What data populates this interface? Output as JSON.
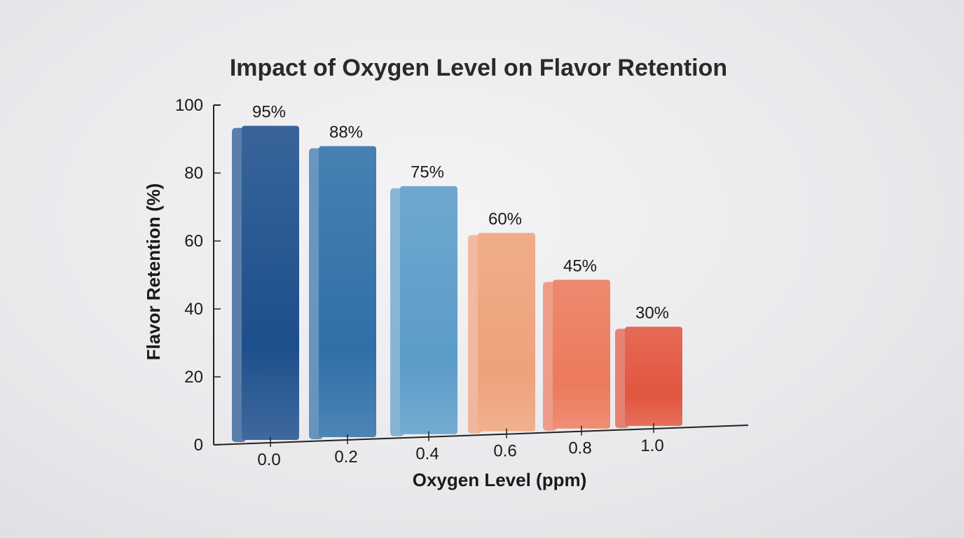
{
  "chart_data": {
    "type": "bar",
    "title": "Impact of Oxygen Level on Flavor Retention",
    "xlabel": "Oxygen Level (ppm)",
    "ylabel": "Flavor Retention (%)",
    "categories": [
      "0.0",
      "0.2",
      "0.4",
      "0.6",
      "0.8",
      "1.0"
    ],
    "values": [
      95,
      88,
      75,
      60,
      45,
      30
    ],
    "data_labels": [
      "95%",
      "88%",
      "75%",
      "60%",
      "45%",
      "30%"
    ],
    "ylim": [
      0,
      100
    ],
    "yticks": [
      "0",
      "20",
      "40",
      "60",
      "80",
      "100"
    ],
    "grid": false,
    "style": "3d",
    "colors": [
      "#1d4f8c",
      "#2f6fa8",
      "#5b9cc8",
      "#eea27b",
      "#ec7a5c",
      "#e2563f"
    ]
  }
}
